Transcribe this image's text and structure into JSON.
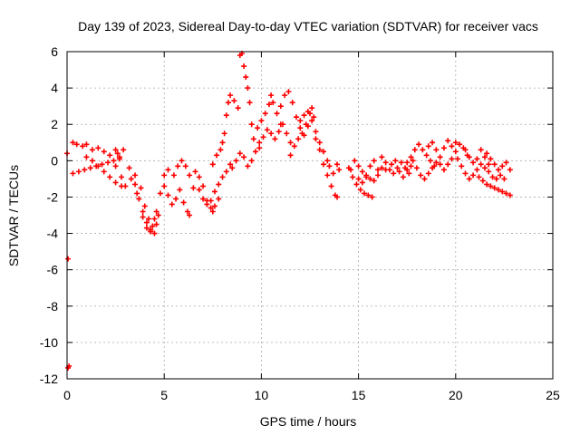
{
  "chart_data": {
    "type": "scatter",
    "title": "Day 139 of 2023, Sidereal Day-to-day VTEC variation (SDTVAR) for receiver vacs",
    "xlabel": "GPS time / hours",
    "ylabel": "SDTVAR / TECUs",
    "xlim": [
      0,
      25
    ],
    "ylim": [
      -12,
      6
    ],
    "xticks": [
      0,
      5,
      10,
      15,
      20,
      25
    ],
    "yticks": [
      -12,
      -10,
      -8,
      -6,
      -4,
      -2,
      0,
      2,
      4,
      6
    ],
    "grid": true,
    "marker": "+",
    "color": "#ff0000",
    "series": [
      {
        "name": "SDTVAR",
        "points": [
          [
            0.0,
            0.4
          ],
          [
            0.05,
            -5.4
          ],
          [
            0.05,
            -11.4
          ],
          [
            0.1,
            -11.3
          ],
          [
            0.3,
            1.0
          ],
          [
            0.5,
            0.9
          ],
          [
            0.8,
            0.8
          ],
          [
            1.0,
            0.9
          ],
          [
            1.3,
            0.6
          ],
          [
            1.6,
            0.7
          ],
          [
            1.9,
            0.5
          ],
          [
            2.2,
            0.3
          ],
          [
            2.5,
            -0.3
          ],
          [
            2.8,
            -0.9
          ],
          [
            3.0,
            -1.4
          ],
          [
            0.3,
            -0.7
          ],
          [
            0.6,
            -0.6
          ],
          [
            0.9,
            -0.5
          ],
          [
            1.2,
            -0.4
          ],
          [
            1.5,
            -0.3
          ],
          [
            1.8,
            -0.2
          ],
          [
            2.1,
            -0.1
          ],
          [
            2.4,
            0.0
          ],
          [
            2.7,
            0.1
          ],
          [
            1.0,
            0.2
          ],
          [
            1.3,
            0.0
          ],
          [
            1.6,
            -0.3
          ],
          [
            1.9,
            -0.6
          ],
          [
            2.2,
            -0.9
          ],
          [
            2.5,
            -1.2
          ],
          [
            2.8,
            -1.4
          ],
          [
            2.5,
            0.6
          ],
          [
            2.6,
            0.4
          ],
          [
            2.7,
            0.2
          ],
          [
            2.9,
            0.6
          ],
          [
            3.2,
            -0.4
          ],
          [
            3.5,
            -0.8
          ],
          [
            3.8,
            -1.5
          ],
          [
            4.0,
            -2.5
          ],
          [
            4.2,
            -3.2
          ],
          [
            4.4,
            -3.6
          ],
          [
            3.3,
            -1.0
          ],
          [
            3.6,
            -1.8
          ],
          [
            3.9,
            -2.8
          ],
          [
            4.1,
            -3.4
          ],
          [
            4.3,
            -3.9
          ],
          [
            4.5,
            -4.0
          ],
          [
            4.6,
            -3.5
          ],
          [
            4.7,
            -3.0
          ],
          [
            3.5,
            -1.3
          ],
          [
            3.7,
            -2.1
          ],
          [
            3.9,
            -3.1
          ],
          [
            4.1,
            -3.7
          ],
          [
            4.3,
            -3.8
          ],
          [
            4.5,
            -3.2
          ],
          [
            4.6,
            -2.8
          ],
          [
            4.8,
            -1.8
          ],
          [
            5.0,
            -1.4
          ],
          [
            5.2,
            -1.9
          ],
          [
            5.4,
            -2.4
          ],
          [
            5.6,
            -2.1
          ],
          [
            5.8,
            -1.6
          ],
          [
            6.0,
            -2.3
          ],
          [
            6.2,
            -2.8
          ],
          [
            6.3,
            -3.0
          ],
          [
            5.0,
            -0.8
          ],
          [
            5.2,
            -0.5
          ],
          [
            5.5,
            -0.8
          ],
          [
            5.7,
            -0.3
          ],
          [
            5.9,
            0.0
          ],
          [
            6.1,
            -0.3
          ],
          [
            6.3,
            -0.8
          ],
          [
            6.5,
            -1.5
          ],
          [
            6.6,
            -0.6
          ],
          [
            6.8,
            -0.9
          ],
          [
            7.0,
            -1.4
          ],
          [
            7.2,
            -2.2
          ],
          [
            7.4,
            -2.6
          ],
          [
            7.5,
            -2.8
          ],
          [
            7.6,
            -2.5
          ],
          [
            7.8,
            -2.1
          ],
          [
            6.8,
            -1.6
          ],
          [
            7.0,
            -2.1
          ],
          [
            7.2,
            -2.4
          ],
          [
            7.4,
            -2.2
          ],
          [
            7.6,
            -1.7
          ],
          [
            7.8,
            -1.3
          ],
          [
            8.0,
            -0.9
          ],
          [
            8.2,
            -0.6
          ],
          [
            8.4,
            -0.2
          ],
          [
            7.5,
            -0.2
          ],
          [
            7.7,
            0.3
          ],
          [
            7.9,
            0.6
          ],
          [
            8.0,
            1.0
          ],
          [
            8.1,
            1.5
          ],
          [
            8.2,
            2.5
          ],
          [
            8.3,
            3.2
          ],
          [
            8.4,
            3.6
          ],
          [
            8.6,
            3.3
          ],
          [
            8.8,
            2.9
          ],
          [
            8.9,
            5.8
          ],
          [
            9.0,
            5.9
          ],
          [
            9.1,
            5.2
          ],
          [
            9.2,
            4.6
          ],
          [
            9.3,
            4.0
          ],
          [
            9.4,
            3.2
          ],
          [
            9.5,
            2.0
          ],
          [
            8.5,
            -0.4
          ],
          [
            8.7,
            0.0
          ],
          [
            8.9,
            0.4
          ],
          [
            9.1,
            0.2
          ],
          [
            9.3,
            -0.3
          ],
          [
            9.5,
            0.0
          ],
          [
            9.7,
            0.5
          ],
          [
            9.9,
            1.0
          ],
          [
            9.6,
            1.2
          ],
          [
            9.8,
            1.8
          ],
          [
            10.0,
            2.2
          ],
          [
            10.2,
            2.6
          ],
          [
            10.4,
            3.1
          ],
          [
            10.5,
            3.6
          ],
          [
            10.6,
            3.2
          ],
          [
            10.8,
            2.6
          ],
          [
            11.0,
            2.0
          ],
          [
            9.9,
            0.7
          ],
          [
            10.1,
            1.3
          ],
          [
            10.3,
            1.7
          ],
          [
            10.5,
            1.5
          ],
          [
            10.7,
            1.2
          ],
          [
            10.9,
            1.6
          ],
          [
            11.1,
            2.0
          ],
          [
            11.3,
            1.5
          ],
          [
            11.5,
            1.0
          ],
          [
            11.0,
            3.0
          ],
          [
            11.2,
            3.6
          ],
          [
            11.4,
            3.8
          ],
          [
            11.6,
            3.2
          ],
          [
            11.8,
            2.4
          ],
          [
            12.0,
            1.8
          ],
          [
            12.2,
            1.4
          ],
          [
            12.4,
            1.9
          ],
          [
            11.5,
            0.3
          ],
          [
            11.7,
            0.8
          ],
          [
            11.9,
            1.2
          ],
          [
            12.1,
            1.5
          ],
          [
            12.3,
            2.0
          ],
          [
            12.5,
            2.6
          ],
          [
            12.6,
            2.9
          ],
          [
            12.7,
            2.4
          ],
          [
            12.0,
            2.2
          ],
          [
            12.2,
            2.5
          ],
          [
            12.4,
            2.7
          ],
          [
            12.6,
            2.2
          ],
          [
            12.8,
            1.6
          ],
          [
            13.0,
            1.0
          ],
          [
            13.2,
            0.5
          ],
          [
            13.4,
            0.0
          ],
          [
            12.8,
            1.2
          ],
          [
            13.0,
            0.6
          ],
          [
            13.2,
            -0.2
          ],
          [
            13.4,
            -0.8
          ],
          [
            13.6,
            -1.4
          ],
          [
            13.8,
            -1.9
          ],
          [
            13.9,
            -2.0
          ],
          [
            13.5,
            -0.3
          ],
          [
            13.7,
            -0.7
          ],
          [
            13.9,
            -0.2
          ],
          [
            14.0,
            -0.5
          ],
          [
            14.5,
            -0.4
          ],
          [
            14.7,
            -0.9
          ],
          [
            14.9,
            -1.3
          ],
          [
            15.1,
            -1.6
          ],
          [
            15.3,
            -1.8
          ],
          [
            15.5,
            -1.9
          ],
          [
            15.7,
            -2.0
          ],
          [
            14.6,
            -0.5
          ],
          [
            14.8,
            0.0
          ],
          [
            15.0,
            -0.3
          ],
          [
            15.2,
            -0.6
          ],
          [
            15.4,
            -0.9
          ],
          [
            15.6,
            -0.3
          ],
          [
            15.8,
            0.0
          ],
          [
            16.0,
            -0.5
          ],
          [
            15.0,
            -1.0
          ],
          [
            15.2,
            -1.2
          ],
          [
            15.4,
            -0.8
          ],
          [
            15.6,
            -1.0
          ],
          [
            15.8,
            -1.1
          ],
          [
            16.0,
            -0.8
          ],
          [
            16.2,
            -0.4
          ],
          [
            16.4,
            -0.5
          ],
          [
            16.2,
            0.2
          ],
          [
            16.4,
            -0.1
          ],
          [
            16.6,
            -0.5
          ],
          [
            16.8,
            -0.7
          ],
          [
            17.0,
            -0.4
          ],
          [
            17.2,
            -0.1
          ],
          [
            17.4,
            -0.4
          ],
          [
            17.6,
            -0.7
          ],
          [
            16.7,
            -0.2
          ],
          [
            16.9,
            0.0
          ],
          [
            17.1,
            -0.6
          ],
          [
            17.3,
            -0.9
          ],
          [
            17.5,
            -0.5
          ],
          [
            17.7,
            -0.3
          ],
          [
            17.5,
            -0.1
          ],
          [
            17.7,
            0.2
          ],
          [
            17.9,
            0.6
          ],
          [
            18.1,
            0.9
          ],
          [
            18.3,
            0.6
          ],
          [
            18.5,
            0.3
          ],
          [
            18.7,
            0.0
          ],
          [
            18.9,
            -0.3
          ],
          [
            17.8,
            0.0
          ],
          [
            18.0,
            -0.4
          ],
          [
            18.2,
            -0.8
          ],
          [
            18.4,
            -1.0
          ],
          [
            18.6,
            -0.7
          ],
          [
            18.8,
            -0.4
          ],
          [
            19.0,
            -0.1
          ],
          [
            18.6,
            0.8
          ],
          [
            18.8,
            1.0
          ],
          [
            19.0,
            0.6
          ],
          [
            19.2,
            0.2
          ],
          [
            19.4,
            0.7
          ],
          [
            19.6,
            1.1
          ],
          [
            19.8,
            0.8
          ],
          [
            20.0,
            1.0
          ],
          [
            19.2,
            -0.2
          ],
          [
            19.4,
            -0.5
          ],
          [
            19.6,
            -0.2
          ],
          [
            19.8,
            0.1
          ],
          [
            20.0,
            0.5
          ],
          [
            20.2,
            0.9
          ],
          [
            20.4,
            0.7
          ],
          [
            20.6,
            0.3
          ],
          [
            20.1,
            0.1
          ],
          [
            20.3,
            -0.3
          ],
          [
            20.5,
            -0.7
          ],
          [
            20.7,
            -1.0
          ],
          [
            20.9,
            -0.8
          ],
          [
            21.1,
            -0.5
          ],
          [
            21.3,
            -0.2
          ],
          [
            20.5,
            0.6
          ],
          [
            20.7,
            0.2
          ],
          [
            20.9,
            -0.1
          ],
          [
            21.1,
            0.1
          ],
          [
            21.3,
            0.6
          ],
          [
            21.5,
            0.2
          ],
          [
            21.7,
            -0.2
          ],
          [
            21.2,
            -0.9
          ],
          [
            21.4,
            -1.1
          ],
          [
            21.6,
            -1.3
          ],
          [
            21.8,
            -1.4
          ],
          [
            22.0,
            -1.5
          ],
          [
            22.2,
            -1.6
          ],
          [
            22.4,
            -1.7
          ],
          [
            22.6,
            -1.8
          ],
          [
            22.8,
            -1.9
          ],
          [
            21.6,
            0.4
          ],
          [
            21.8,
            0.1
          ],
          [
            22.0,
            -0.2
          ],
          [
            22.2,
            -0.5
          ],
          [
            22.4,
            -0.3
          ],
          [
            22.6,
            -0.1
          ],
          [
            22.8,
            -0.5
          ],
          [
            21.5,
            -0.4
          ],
          [
            21.7,
            -0.6
          ],
          [
            21.9,
            -0.9
          ],
          [
            22.1,
            -1.0
          ],
          [
            22.3,
            -0.8
          ],
          [
            22.5,
            -1.0
          ]
        ]
      }
    ]
  }
}
